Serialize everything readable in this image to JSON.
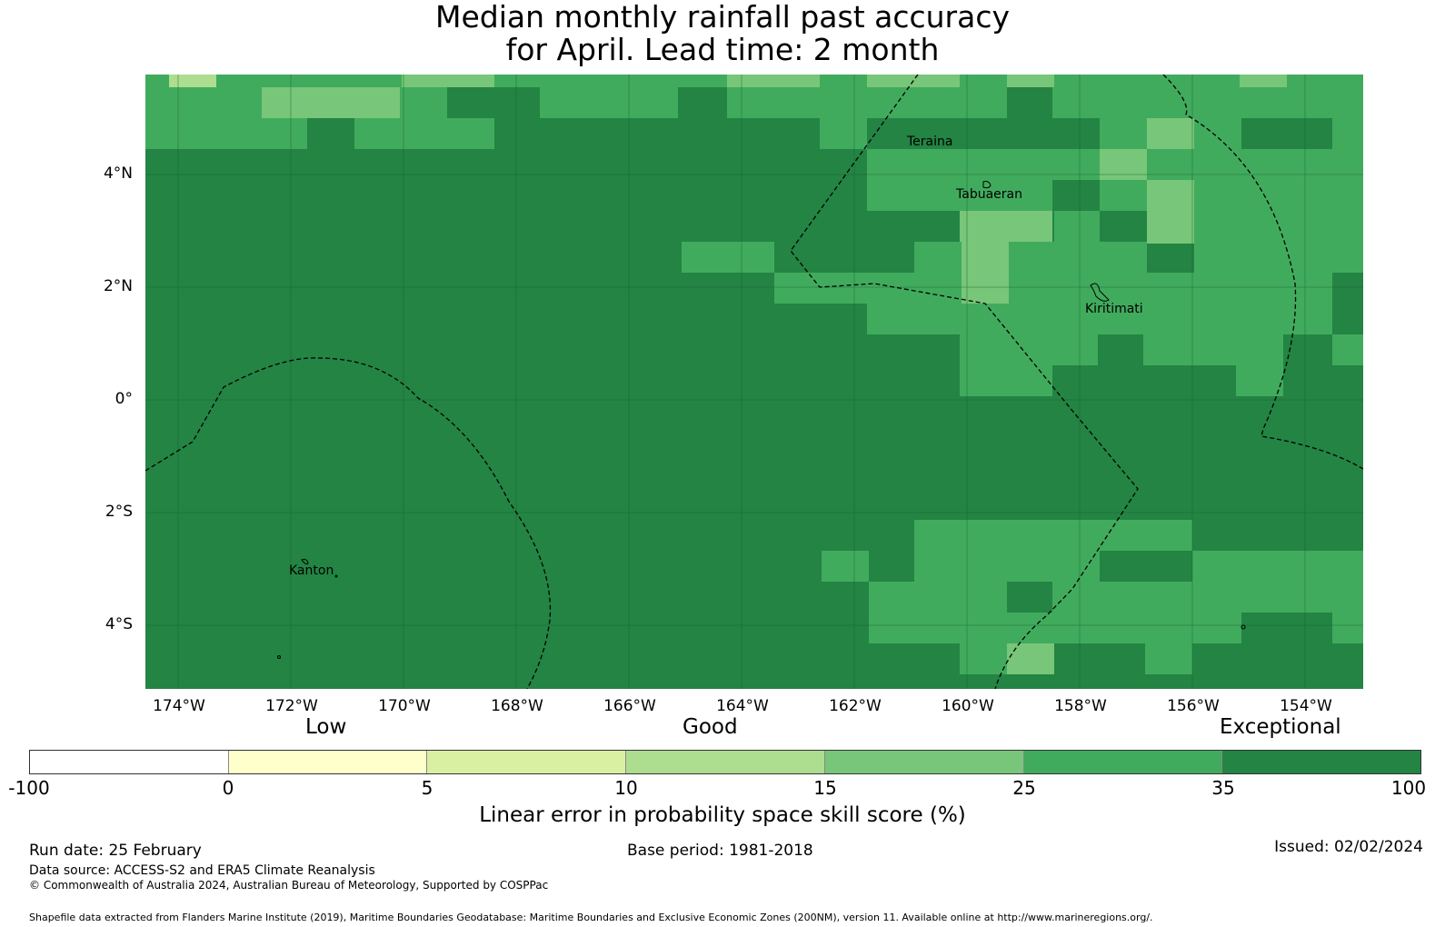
{
  "title": {
    "line1": "Median monthly rainfall past accuracy",
    "line2": "for April. Lead time: 2 month"
  },
  "map": {
    "lat_labels": [
      "4°N",
      "2°N",
      "0°",
      "2°S",
      "4°S"
    ],
    "lon_labels": [
      "174°W",
      "172°W",
      "170°W",
      "168°W",
      "166°W",
      "164°W",
      "162°W",
      "160°W",
      "158°W",
      "156°W",
      "154°W"
    ],
    "places": [
      "Teraina",
      "Tabuaeran",
      "Kiritimati",
      "Kanton"
    ],
    "base_color": "#238443",
    "colors": {
      "c15_25": "#78c679",
      "c25_35": "#41ab5d",
      "c35_100": "#238443",
      "c10_15": "#addd8e"
    }
  },
  "colorbar": {
    "categories": [
      "Low",
      "Good",
      "Exceptional"
    ],
    "ticks": [
      "-100",
      "0",
      "5",
      "10",
      "15",
      "25",
      "35",
      "100"
    ],
    "colors": [
      "#ffffff",
      "#ffffcc",
      "#d9f0a3",
      "#addd8e",
      "#78c679",
      "#41ab5d",
      "#238443"
    ],
    "label": "Linear error in probability space skill score (%)"
  },
  "footer": {
    "run_date": "Run date: 25 February",
    "base_period": "Base period: 1981-2018",
    "issued": "Issued: 02/02/2024",
    "data_source": "Data source: ACCESS-S2 and ERA5 Climate Reanalysis",
    "copyright": "© Commonwealth of Australia 2024, Australian Bureau of Meteorology, Supported by COSPPac",
    "shapefile": "Shapefile data extracted from Flanders Marine Institute (2019), Maritime Boundaries Geodatabase: Maritime Boundaries and Exclusive Economic Zones (200NM), version 11. Available online at http://www.marineregions.org/."
  }
}
